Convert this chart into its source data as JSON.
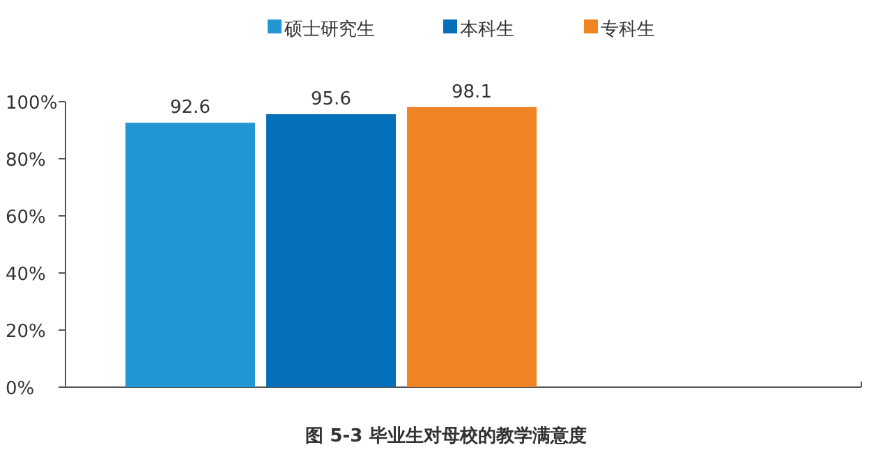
{
  "chart_data": {
    "type": "bar",
    "title": "图 5-3  毕业生对母校的教学满意度",
    "categories": [
      null
    ],
    "series": [
      {
        "name": "硕士研究生",
        "color": "#2397d4",
        "values": [
          92.6
        ]
      },
      {
        "name": "本科生",
        "color": "#0570b9",
        "values": [
          95.6
        ]
      },
      {
        "name": "专科生",
        "color": "#f08424",
        "values": [
          98.1
        ]
      }
    ],
    "ylim": [
      0,
      100
    ],
    "yticks": [
      {
        "value": 0,
        "label": "0%"
      },
      {
        "value": 20,
        "label": "20%"
      },
      {
        "value": 40,
        "label": "40%"
      },
      {
        "value": 60,
        "label": "60%"
      },
      {
        "value": 80,
        "label": "80%"
      },
      {
        "value": 100,
        "label": "100%"
      }
    ],
    "data_labels": true,
    "grid": false,
    "legend": "top"
  }
}
